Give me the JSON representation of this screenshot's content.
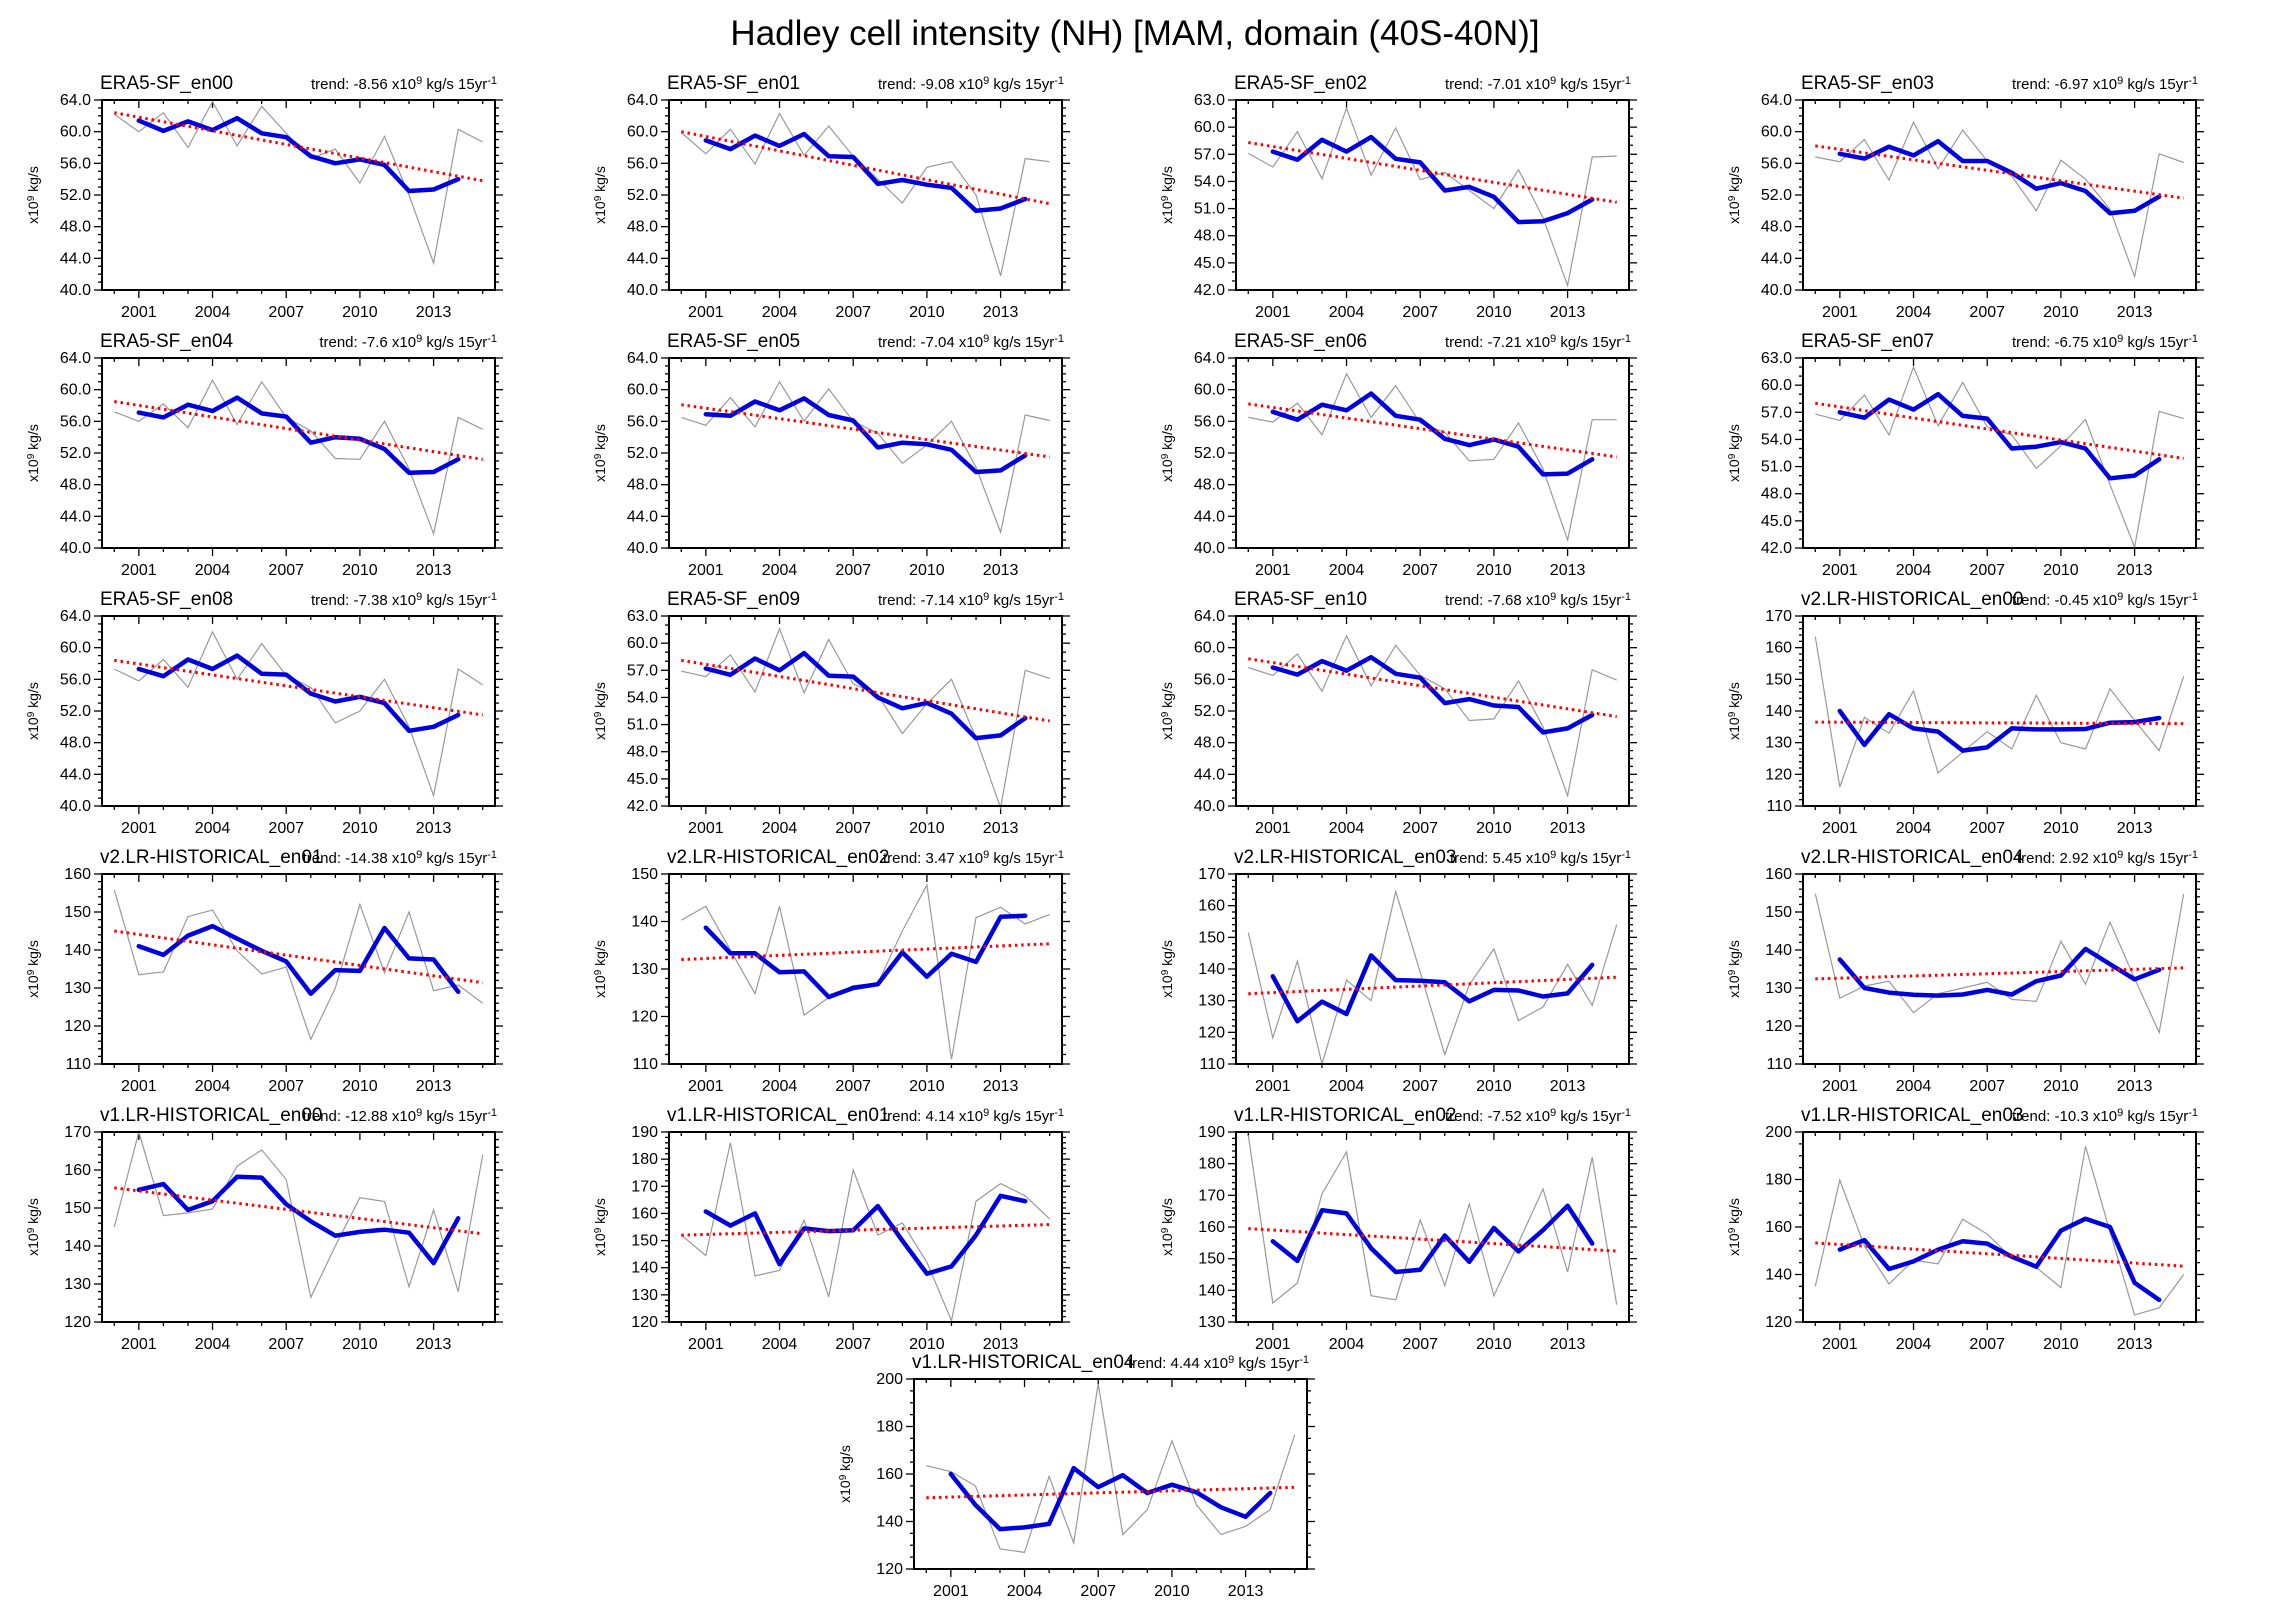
{
  "page_title": "Hadley cell intensity (NH) [MAM, domain (40S-40N)]",
  "colors": {
    "raw_line": "#999999",
    "smooth_line": "#0000dd",
    "trend_line": "#ff0000",
    "frame": "#000000"
  },
  "chart_data": {
    "type": "line",
    "title": "Hadley cell intensity (NH) [MAM, domain (40S-40N)]",
    "x_axis": {
      "ticks": [
        2001,
        2004,
        2007,
        2010,
        2013
      ],
      "range": [
        1999.5,
        2015.5
      ],
      "minor_step_years": 1
    },
    "ylabel_parts": {
      "base": "x10",
      "sup": "9",
      "rest": " kg/s"
    },
    "trend_label_parts": {
      "prefix": "trend: ",
      "x10": " x10",
      "sup": "9",
      "unit": " kg/s 15yr",
      "sup2": "-1"
    },
    "years_raw": [
      2000,
      2001,
      2002,
      2003,
      2004,
      2005,
      2006,
      2007,
      2008,
      2009,
      2010,
      2011,
      2012,
      2013,
      2014,
      2015
    ],
    "years_smooth": [
      2001,
      2002,
      2003,
      2004,
      2005,
      2006,
      2007,
      2008,
      2009,
      2010,
      2011,
      2012,
      2013,
      2014
    ],
    "trend_years": [
      2000,
      2015
    ],
    "panels": [
      {
        "title": "ERA5-SF_en00",
        "trend_value": "-8.56",
        "ylim": [
          40,
          64
        ],
        "ystep": 4,
        "yminor": 1,
        "ydec": 1,
        "raw": [
          62.2,
          60.0,
          62.4,
          58.0,
          63.8,
          58.2,
          63.2,
          59.8,
          56.6,
          57.8,
          53.5,
          59.4,
          52.0,
          43.4,
          60.3,
          58.7
        ],
        "smooth": [
          61.4,
          60.1,
          61.3,
          60.2,
          61.7,
          59.8,
          59.3,
          56.9,
          56.0,
          56.5,
          55.8,
          52.5,
          52.7,
          54.0
        ],
        "trend": [
          62.4,
          53.8
        ]
      },
      {
        "title": "ERA5-SF_en01",
        "trend_value": "-9.08",
        "ylim": [
          40,
          64
        ],
        "ystep": 4,
        "yminor": 1,
        "ydec": 1,
        "raw": [
          59.9,
          57.2,
          60.3,
          55.9,
          62.3,
          57.0,
          60.7,
          56.9,
          54.0,
          51.0,
          55.5,
          56.2,
          52.0,
          41.8,
          56.6,
          56.2
        ],
        "smooth": [
          58.9,
          57.8,
          59.5,
          58.2,
          59.7,
          56.9,
          56.8,
          53.4,
          53.9,
          53.3,
          52.9,
          50.0,
          50.3,
          51.5
        ],
        "trend": [
          60.0,
          50.9
        ]
      },
      {
        "title": "ERA5-SF_en02",
        "trend_value": "-7.01",
        "ylim": [
          42,
          63
        ],
        "ystep": 3,
        "yminor": 1,
        "ydec": 1,
        "raw": [
          57.1,
          55.6,
          59.5,
          54.3,
          62.1,
          54.7,
          59.9,
          54.2,
          55.0,
          53.0,
          51.0,
          55.3,
          50.0,
          42.5,
          56.7,
          56.8
        ],
        "smooth": [
          57.3,
          56.4,
          58.6,
          57.3,
          58.9,
          56.5,
          56.1,
          53.0,
          53.4,
          52.3,
          49.5,
          49.6,
          50.5,
          52.0
        ],
        "trend": [
          58.3,
          51.7
        ]
      },
      {
        "title": "ERA5-SF_en03",
        "trend_value": "-6.97",
        "ylim": [
          40,
          64
        ],
        "ystep": 4,
        "yminor": 1,
        "ydec": 1,
        "raw": [
          56.8,
          56.2,
          59.0,
          53.9,
          61.2,
          55.3,
          60.2,
          56.3,
          54.4,
          50.0,
          56.4,
          54.0,
          50.2,
          41.7,
          57.2,
          56.1
        ],
        "smooth": [
          57.2,
          56.6,
          58.1,
          57.0,
          58.8,
          56.3,
          56.3,
          54.8,
          52.8,
          53.5,
          52.5,
          49.7,
          50.0,
          51.8
        ],
        "trend": [
          58.2,
          51.6
        ]
      },
      {
        "title": "ERA5-SF_en04",
        "trend_value": "-7.6",
        "ylim": [
          40,
          64
        ],
        "ystep": 4,
        "yminor": 1,
        "ydec": 1,
        "raw": [
          57.2,
          56.0,
          58.2,
          55.2,
          61.2,
          55.6,
          61.0,
          56.5,
          54.8,
          51.3,
          51.2,
          56.0,
          50.0,
          41.8,
          56.5,
          55.0
        ],
        "smooth": [
          57.1,
          56.5,
          58.1,
          57.3,
          59.0,
          57.0,
          56.6,
          53.3,
          54.0,
          53.8,
          52.5,
          49.5,
          49.6,
          51.2
        ],
        "trend": [
          58.5,
          51.2
        ]
      },
      {
        "title": "ERA5-SF_en05",
        "trend_value": "-7.04",
        "ylim": [
          40,
          64
        ],
        "ystep": 4,
        "yminor": 1,
        "ydec": 1,
        "raw": [
          56.5,
          55.5,
          59.0,
          55.3,
          61.0,
          56.0,
          60.1,
          56.0,
          54.5,
          50.7,
          53.0,
          56.0,
          50.2,
          42.0,
          56.8,
          56.1
        ],
        "smooth": [
          56.9,
          56.7,
          58.5,
          57.4,
          58.9,
          56.8,
          56.1,
          52.7,
          53.3,
          53.1,
          52.4,
          49.6,
          49.8,
          51.7
        ],
        "trend": [
          58.1,
          51.5
        ]
      },
      {
        "title": "ERA5-SF_en06",
        "trend_value": "-7.21",
        "ylim": [
          40,
          64
        ],
        "ystep": 4,
        "yminor": 1,
        "ydec": 1,
        "raw": [
          56.5,
          55.9,
          58.3,
          54.3,
          62.0,
          56.5,
          60.5,
          55.8,
          54.6,
          51.0,
          51.2,
          55.8,
          50.0,
          41.0,
          56.2,
          56.2
        ],
        "smooth": [
          57.2,
          56.2,
          58.1,
          57.4,
          59.5,
          56.7,
          56.2,
          53.8,
          53.0,
          53.7,
          52.8,
          49.3,
          49.4,
          51.2
        ],
        "trend": [
          58.2,
          51.5
        ]
      },
      {
        "title": "ERA5-SF_en07",
        "trend_value": "-6.75",
        "ylim": [
          42,
          63
        ],
        "ystep": 3,
        "yminor": 1,
        "ydec": 1,
        "raw": [
          56.8,
          56.1,
          58.9,
          54.5,
          62.0,
          55.5,
          60.3,
          55.4,
          54.5,
          50.8,
          53.3,
          56.2,
          49.0,
          42.1,
          57.1,
          56.3
        ],
        "smooth": [
          57.0,
          56.4,
          58.4,
          57.3,
          59.0,
          56.6,
          56.3,
          53.0,
          53.2,
          53.7,
          53.0,
          49.7,
          50.0,
          51.8
        ],
        "trend": [
          58.0,
          51.9
        ]
      },
      {
        "title": "ERA5-SF_en08",
        "trend_value": "-7.38",
        "ylim": [
          40,
          64
        ],
        "ystep": 4,
        "yminor": 1,
        "ydec": 1,
        "raw": [
          57.3,
          55.8,
          58.5,
          55.0,
          62.0,
          56.0,
          60.5,
          56.5,
          55.0,
          50.5,
          52.0,
          56.0,
          50.0,
          41.3,
          57.3,
          55.3
        ],
        "smooth": [
          57.3,
          56.4,
          58.5,
          57.3,
          59.0,
          56.7,
          56.6,
          54.2,
          53.2,
          53.8,
          53.0,
          49.5,
          50.0,
          51.5
        ],
        "trend": [
          58.4,
          51.5
        ]
      },
      {
        "title": "ERA5-SF_en09",
        "trend_value": "-7.14",
        "ylim": [
          42,
          63
        ],
        "ystep": 3,
        "yminor": 1,
        "ydec": 1,
        "raw": [
          56.9,
          56.3,
          58.7,
          54.6,
          61.6,
          54.5,
          60.4,
          55.5,
          54.3,
          50.0,
          53.3,
          56.0,
          49.5,
          41.8,
          57.0,
          56.1
        ],
        "smooth": [
          57.2,
          56.5,
          58.3,
          57.0,
          58.9,
          56.4,
          56.3,
          54.0,
          52.8,
          53.4,
          52.2,
          49.5,
          49.8,
          51.7
        ],
        "trend": [
          58.1,
          51.4
        ]
      },
      {
        "title": "ERA5-SF_en10",
        "trend_value": "-7.68",
        "ylim": [
          40,
          64
        ],
        "ystep": 4,
        "yminor": 1,
        "ydec": 1,
        "raw": [
          57.5,
          56.5,
          59.2,
          54.5,
          61.5,
          55.2,
          60.3,
          56.5,
          54.8,
          50.8,
          51.0,
          55.8,
          50.0,
          41.3,
          57.2,
          55.9
        ],
        "smooth": [
          57.5,
          56.6,
          58.3,
          57.1,
          58.8,
          56.7,
          56.2,
          53.0,
          53.5,
          52.7,
          52.5,
          49.3,
          49.8,
          51.5
        ],
        "trend": [
          58.6,
          51.3
        ]
      },
      {
        "title": "v2.LR-HISTORICAL_en00",
        "trend_value": "-0.45",
        "ylim": [
          110,
          170
        ],
        "ystep": 10,
        "yminor": 2,
        "ydec": 0,
        "raw": [
          163.5,
          116.0,
          138.0,
          133.0,
          146.3,
          120.5,
          127.0,
          133.5,
          128.0,
          145.0,
          130.0,
          128.0,
          147.0,
          137.0,
          127.5,
          151.0
        ],
        "smooth": [
          140.0,
          129.3,
          139.0,
          134.5,
          133.5,
          127.5,
          128.5,
          134.5,
          134.2,
          134.2,
          134.3,
          136.3,
          136.5,
          137.8
        ],
        "trend": [
          136.5,
          136.0
        ]
      },
      {
        "title": "v2.LR-HISTORICAL_en01",
        "trend_value": "-14.38",
        "ylim": [
          110,
          160
        ],
        "ystep": 10,
        "yminor": 2,
        "ydec": 0,
        "raw": [
          155.8,
          133.5,
          134.2,
          148.8,
          150.5,
          139.8,
          133.7,
          135.5,
          116.5,
          130.0,
          152.0,
          134.0,
          150.0,
          129.3,
          130.8,
          126.0
        ],
        "smooth": [
          141.0,
          138.7,
          143.8,
          146.3,
          143.0,
          139.8,
          137.0,
          128.5,
          134.7,
          134.5,
          145.8,
          137.8,
          137.5,
          129.0
        ],
        "trend": [
          145.0,
          131.4
        ]
      },
      {
        "title": "v2.LR-HISTORICAL_en02",
        "trend_value": "3.47",
        "ylim": [
          110,
          150
        ],
        "ystep": 10,
        "yminor": 2,
        "ydec": 0,
        "raw": [
          140.3,
          143.2,
          134.0,
          124.8,
          143.2,
          120.3,
          124.0,
          126.5,
          127.0,
          138.0,
          147.7,
          111.0,
          140.8,
          143.0,
          139.5,
          141.5
        ],
        "smooth": [
          138.7,
          133.3,
          133.3,
          129.3,
          129.5,
          124.1,
          126.0,
          126.8,
          133.5,
          128.4,
          133.2,
          131.5,
          141.0,
          141.2
        ],
        "trend": [
          132.0,
          135.3
        ]
      },
      {
        "title": "v2.LR-HISTORICAL_en03",
        "trend_value": "5.45",
        "ylim": [
          110,
          170
        ],
        "ystep": 10,
        "yminor": 2,
        "ydec": 0,
        "raw": [
          151.5,
          118.3,
          142.5,
          110.0,
          136.5,
          130.0,
          164.5,
          139.0,
          113.0,
          135.0,
          146.3,
          123.7,
          128.0,
          141.5,
          128.5,
          154.0
        ],
        "smooth": [
          137.7,
          123.5,
          129.7,
          125.8,
          144.3,
          136.5,
          136.3,
          135.8,
          129.8,
          133.4,
          133.2,
          131.3,
          132.3,
          141.3
        ],
        "trend": [
          132.2,
          137.4
        ]
      },
      {
        "title": "v2.LR-HISTORICAL_en04",
        "trend_value": "2.92",
        "ylim": [
          110,
          160
        ],
        "ystep": 10,
        "yminor": 2,
        "ydec": 0,
        "raw": [
          154.8,
          127.3,
          130.5,
          131.8,
          123.5,
          128.5,
          130.0,
          131.5,
          127.0,
          126.5,
          142.3,
          131.0,
          147.3,
          132.5,
          118.3,
          154.8
        ],
        "smooth": [
          137.5,
          130.0,
          128.8,
          128.2,
          128.0,
          128.3,
          129.5,
          128.3,
          131.8,
          133.3,
          140.3,
          136.3,
          132.3,
          134.8
        ],
        "trend": [
          132.4,
          135.3
        ]
      },
      {
        "title": "v1.LR-HISTORICAL_en00",
        "trend_value": "-12.88",
        "ylim": [
          120,
          170
        ],
        "ystep": 10,
        "yminor": 2,
        "ydec": 0,
        "raw": [
          145.0,
          170.0,
          148.0,
          148.7,
          149.7,
          161.0,
          165.3,
          157.5,
          126.5,
          140.0,
          152.7,
          151.7,
          129.3,
          149.5,
          128.0,
          164.0
        ],
        "smooth": [
          154.8,
          156.3,
          149.5,
          151.8,
          158.2,
          158.0,
          151.0,
          146.5,
          142.7,
          143.7,
          144.3,
          143.5,
          135.5,
          147.3
        ],
        "trend": [
          155.3,
          143.2
        ]
      },
      {
        "title": "v1.LR-HISTORICAL_en01",
        "trend_value": "4.14",
        "ylim": [
          120,
          190
        ],
        "ystep": 10,
        "yminor": 2,
        "ydec": 0,
        "raw": [
          152.0,
          144.5,
          186.0,
          137.0,
          139.0,
          157.5,
          129.3,
          176.0,
          152.0,
          156.5,
          142.0,
          120.5,
          164.5,
          171.0,
          166.5,
          158.0
        ],
        "smooth": [
          160.7,
          155.5,
          160.0,
          141.3,
          154.5,
          153.5,
          153.8,
          162.7,
          150.0,
          137.8,
          140.5,
          152.0,
          166.5,
          164.5
        ],
        "trend": [
          152.0,
          155.9
        ]
      },
      {
        "title": "v1.LR-HISTORICAL_en02",
        "trend_value": "-7.52",
        "ylim": [
          130,
          190
        ],
        "ystep": 10,
        "yminor": 2,
        "ydec": 0,
        "raw": [
          189.0,
          136.0,
          142.3,
          170.5,
          183.7,
          138.3,
          137.0,
          162.2,
          141.5,
          167.3,
          138.3,
          155.0,
          172.0,
          145.8,
          182.0,
          135.5
        ],
        "smooth": [
          155.5,
          149.3,
          165.3,
          164.3,
          153.3,
          145.8,
          146.5,
          157.3,
          149.0,
          159.7,
          152.3,
          159.0,
          166.7,
          154.8
        ],
        "trend": [
          159.5,
          152.4
        ]
      },
      {
        "title": "v1.LR-HISTORICAL_en03",
        "trend_value": "-10.3",
        "ylim": [
          120,
          200
        ],
        "ystep": 20,
        "yminor": 5,
        "ydec": 0,
        "raw": [
          135.0,
          179.8,
          152.0,
          136.0,
          146.0,
          144.5,
          163.3,
          157.0,
          147.0,
          143.0,
          134.5,
          194.0,
          158.0,
          123.0,
          126.0,
          140.0
        ],
        "smooth": [
          150.5,
          154.5,
          142.3,
          145.5,
          150.5,
          154.0,
          153.0,
          147.5,
          143.3,
          158.5,
          163.5,
          160.0,
          136.5,
          129.3
        ],
        "trend": [
          153.3,
          143.5
        ]
      },
      {
        "title": "v1.LR-HISTORICAL_en04",
        "trend_value": "4.44",
        "ylim": [
          120,
          200
        ],
        "ystep": 20,
        "yminor": 5,
        "ydec": 0,
        "raw": [
          163.5,
          161.0,
          155.0,
          128.5,
          127.0,
          159.0,
          131.0,
          198.0,
          134.5,
          145.0,
          174.0,
          147.0,
          134.5,
          138.0,
          145.0,
          176.5
        ],
        "smooth": [
          160.0,
          147.0,
          136.8,
          137.5,
          139.0,
          162.5,
          154.5,
          159.5,
          152.0,
          155.5,
          152.3,
          146.0,
          142.0,
          152.0
        ],
        "trend": [
          150.0,
          154.4
        ]
      }
    ]
  }
}
